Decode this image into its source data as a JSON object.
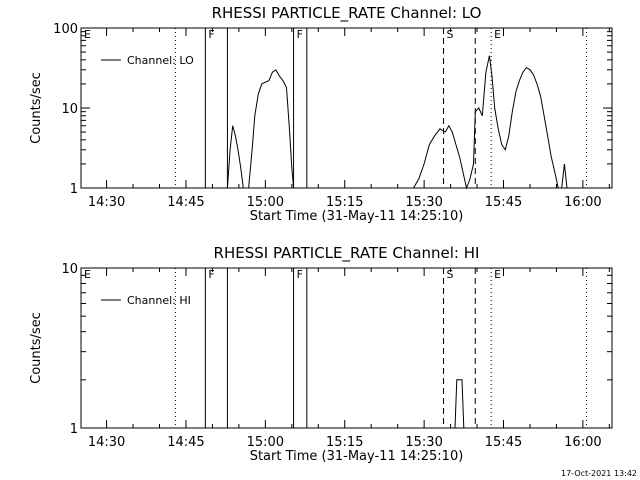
{
  "chart_data": [
    {
      "type": "line",
      "title": "RHESSI PARTICLE_RATE Channel: LO",
      "xlabel": "Start Time (31-May-11 14:25:10)",
      "ylabel": "Counts/sec",
      "scale_y": "log",
      "xlim": [
        "14:25:10",
        "16:05:30"
      ],
      "ylim": [
        1,
        100
      ],
      "x_ticks": [
        "14:30",
        "14:45",
        "15:00",
        "15:15",
        "15:30",
        "15:45",
        "16:00"
      ],
      "y_ticks": [
        "1",
        "10",
        "100"
      ],
      "grid": false,
      "legend": {
        "position": "top-left",
        "entries": [
          "Channel: LO"
        ]
      },
      "markers": [
        {
          "label": "E",
          "time": "14:25:10",
          "style": "none"
        },
        {
          "label": "",
          "time": "14:43:00",
          "style": "dotted"
        },
        {
          "label": "F",
          "time": "14:48:40",
          "style": "solid"
        },
        {
          "label": "",
          "time": "14:52:50",
          "style": "solid"
        },
        {
          "label": "F",
          "time": "15:05:20",
          "style": "solid"
        },
        {
          "label": "",
          "time": "15:07:50",
          "style": "solid"
        },
        {
          "label": "S",
          "time": "15:33:40",
          "style": "dashed"
        },
        {
          "label": "",
          "time": "15:39:40",
          "style": "dashed"
        },
        {
          "label": "E",
          "time": "15:42:40",
          "style": "dotted"
        },
        {
          "label": "",
          "time": "16:00:40",
          "style": "dotted"
        }
      ],
      "series": [
        {
          "x": [
            "14:52:50",
            "14:53:20",
            "14:53:50",
            "14:54:20",
            "14:54:50",
            "14:55:20",
            "14:55:50",
            "14:56:50",
            "14:57:30",
            "14:58:00",
            "14:58:40",
            "14:59:20",
            "15:00:00",
            "15:00:40",
            "15:01:20",
            "15:02:00",
            "15:02:40",
            "15:03:20",
            "15:04:00",
            "15:04:30",
            "15:05:00",
            "15:05:20"
          ],
          "y": [
            1,
            3,
            6,
            4.5,
            3,
            1.8,
            1,
            1,
            3,
            8,
            15,
            20,
            21,
            22,
            28,
            30,
            25,
            22,
            18,
            6,
            1.8,
            1
          ]
        },
        {
          "x": [
            "15:28:00",
            "15:29:00",
            "15:30:00",
            "15:31:00",
            "15:32:00",
            "15:33:00",
            "15:34:00",
            "15:34:40",
            "15:35:20",
            "15:36:00",
            "15:36:40",
            "15:37:20",
            "15:38:00",
            "15:38:40",
            "15:39:20",
            "15:39:40",
            "15:40:20",
            "15:41:00",
            "15:41:40",
            "15:42:20",
            "15:42:50",
            "15:43:20",
            "15:44:00",
            "15:44:40",
            "15:45:20",
            "15:46:00",
            "15:46:40",
            "15:47:20",
            "15:48:00",
            "15:48:40",
            "15:49:20",
            "15:50:00",
            "15:50:40",
            "15:51:20",
            "15:52:00",
            "15:52:40",
            "15:53:20",
            "15:54:00",
            "15:54:40",
            "15:55:20",
            "15:56:00",
            "15:56:30",
            "15:57:00"
          ],
          "y": [
            1,
            1.3,
            2,
            3.5,
            4.5,
            5.5,
            5,
            6,
            5,
            3.5,
            2.5,
            1.6,
            1,
            1.3,
            2,
            9,
            10,
            8,
            28,
            45,
            25,
            10,
            5.5,
            3.5,
            3,
            4.5,
            9,
            16,
            22,
            28,
            32,
            30,
            26,
            20,
            14,
            8,
            4.5,
            2.5,
            1.6,
            1,
            1,
            2,
            1
          ]
        }
      ]
    },
    {
      "type": "line",
      "title": "RHESSI PARTICLE_RATE Channel: HI",
      "xlabel": "Start Time (31-May-11 14:25:10)",
      "ylabel": "Counts/sec",
      "scale_y": "log",
      "xlim": [
        "14:25:10",
        "16:05:30"
      ],
      "ylim": [
        1,
        10
      ],
      "x_ticks": [
        "14:30",
        "14:45",
        "15:00",
        "15:15",
        "15:30",
        "15:45",
        "16:00"
      ],
      "y_ticks": [
        "1",
        "10"
      ],
      "grid": false,
      "legend": {
        "position": "top-left",
        "entries": [
          "Channel: HI"
        ]
      },
      "markers": [
        {
          "label": "E",
          "time": "14:25:10",
          "style": "none"
        },
        {
          "label": "",
          "time": "14:43:00",
          "style": "dotted"
        },
        {
          "label": "F",
          "time": "14:48:40",
          "style": "solid"
        },
        {
          "label": "",
          "time": "14:52:50",
          "style": "solid"
        },
        {
          "label": "F",
          "time": "15:05:20",
          "style": "solid"
        },
        {
          "label": "",
          "time": "15:07:50",
          "style": "solid"
        },
        {
          "label": "S",
          "time": "15:33:40",
          "style": "dashed"
        },
        {
          "label": "",
          "time": "15:39:40",
          "style": "dashed"
        },
        {
          "label": "E",
          "time": "15:42:40",
          "style": "dotted"
        },
        {
          "label": "",
          "time": "16:00:40",
          "style": "dotted"
        }
      ],
      "series": [
        {
          "x": [
            "15:35:50",
            "15:36:10",
            "15:37:10",
            "15:37:30"
          ],
          "y": [
            1,
            2,
            2,
            1
          ]
        }
      ]
    }
  ],
  "footer": {
    "timestamp": "17-Oct-2021 13:42"
  }
}
